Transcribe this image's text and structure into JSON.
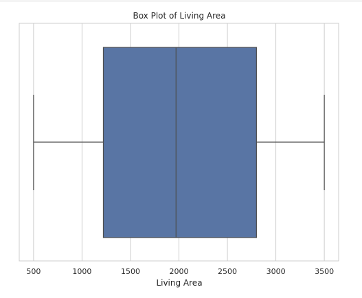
{
  "chart_data": {
    "type": "box",
    "title": "Box Plot of Living Area",
    "xlabel": "Living Area",
    "ylabel": "",
    "xlim": [
      352,
      3648
    ],
    "xticks": [
      500,
      1000,
      1500,
      2000,
      2500,
      3000,
      3500
    ],
    "xtick_labels": [
      "500",
      "1000",
      "1500",
      "2000",
      "2500",
      "3000",
      "3500"
    ],
    "grid": true,
    "series": [
      {
        "min": 500,
        "q1": 1220,
        "median": 1970,
        "q3": 2800,
        "max": 3500
      }
    ],
    "colors": {
      "box_fill": "#5975a4",
      "line": "#4d4d4d",
      "grid": "#cccccc",
      "spine": "#cccccc"
    }
  }
}
